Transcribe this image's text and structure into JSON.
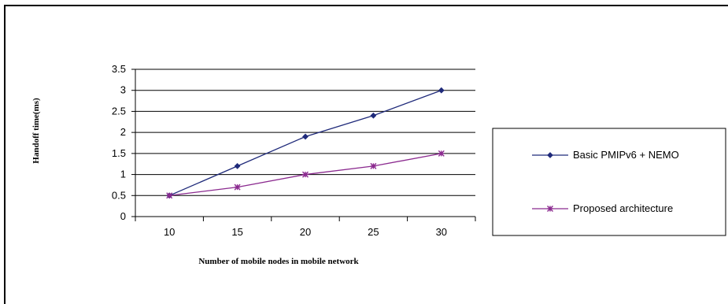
{
  "chart_data": {
    "type": "line",
    "title": "",
    "xlabel": "Number of mobile nodes in mobile network",
    "ylabel": "Handoff time(ms)",
    "categories": [
      "10",
      "15",
      "20",
      "25",
      "30"
    ],
    "y_tick_labels": [
      "0",
      "0.5",
      "1",
      "1.5",
      "2",
      "2.5",
      "3",
      "3.5"
    ],
    "ylim": [
      0,
      3.5
    ],
    "grid": "horizontal",
    "legend_placement": "right",
    "series": [
      {
        "name": "Basic PMIPv6 + NEMO",
        "values": [
          0.5,
          1.2,
          1.9,
          2.4,
          3.0
        ],
        "color": "#1f2a7a",
        "marker": "diamond"
      },
      {
        "name": "Proposed architecture",
        "values": [
          0.5,
          0.7,
          1.0,
          1.2,
          1.5
        ],
        "color": "#8b2a8f",
        "marker": "asterisk"
      }
    ]
  }
}
